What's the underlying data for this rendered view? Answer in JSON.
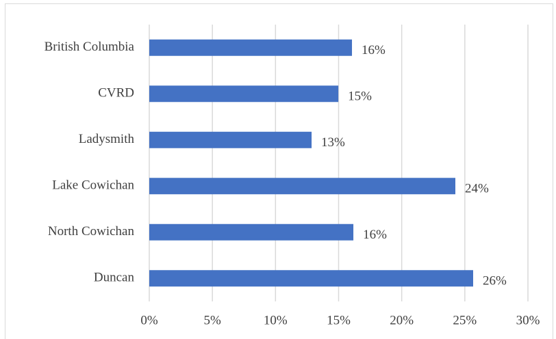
{
  "chart_data": {
    "type": "bar",
    "orientation": "horizontal",
    "categories": [
      "British Columbia",
      "CVRD",
      "Ladysmith",
      "Lake Cowichan",
      "North Cowichan",
      "Duncan"
    ],
    "values": [
      16.06,
      14.98,
      12.86,
      24.25,
      16.17,
      25.66
    ],
    "value_labels": [
      "16%",
      "15%",
      "13%",
      "24%",
      "16%",
      "26%"
    ],
    "color": "#4472c4",
    "xlim": [
      0,
      30
    ],
    "xticks": [
      {
        "value": 0,
        "label": "0%"
      },
      {
        "value": 5,
        "label": "5%"
      },
      {
        "value": 10,
        "label": "10%"
      },
      {
        "value": 15,
        "label": "15%"
      },
      {
        "value": 20,
        "label": "20%"
      },
      {
        "value": 25,
        "label": "25%"
      },
      {
        "value": 30,
        "label": "30%"
      }
    ],
    "grid": true
  }
}
